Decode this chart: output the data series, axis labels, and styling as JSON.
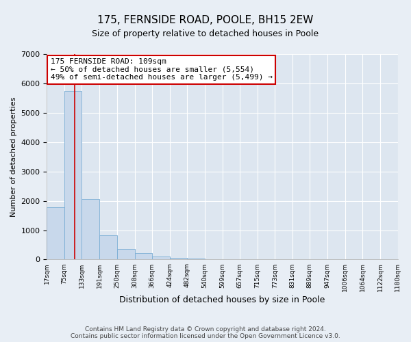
{
  "title": "175, FERNSIDE ROAD, POOLE, BH15 2EW",
  "subtitle": "Size of property relative to detached houses in Poole",
  "xlabel": "Distribution of detached houses by size in Poole",
  "ylabel": "Number of detached properties",
  "bar_values": [
    1780,
    5750,
    2060,
    820,
    370,
    220,
    100,
    55,
    30,
    10,
    5
  ],
  "bin_edges": [
    17,
    75,
    133,
    191,
    250,
    308,
    366,
    424,
    482,
    540,
    599,
    657,
    715,
    773,
    831,
    889,
    947,
    1006,
    1064,
    1122,
    1180
  ],
  "tick_labels": [
    "17sqm",
    "75sqm",
    "133sqm",
    "191sqm",
    "250sqm",
    "308sqm",
    "366sqm",
    "424sqm",
    "482sqm",
    "540sqm",
    "599sqm",
    "657sqm",
    "715sqm",
    "773sqm",
    "831sqm",
    "889sqm",
    "947sqm",
    "1006sqm",
    "1064sqm",
    "1122sqm",
    "1180sqm"
  ],
  "bar_color": "#c8d8eb",
  "bar_edge_color": "#7aadd4",
  "vline_x": 109,
  "vline_color": "#cc0000",
  "ylim": [
    0,
    7000
  ],
  "yticks": [
    0,
    1000,
    2000,
    3000,
    4000,
    5000,
    6000,
    7000
  ],
  "annotation_text": "175 FERNSIDE ROAD: 109sqm\n← 50% of detached houses are smaller (5,554)\n49% of semi-detached houses are larger (5,499) →",
  "annotation_box_facecolor": "#ffffff",
  "annotation_box_edgecolor": "#cc0000",
  "footer_line1": "Contains HM Land Registry data © Crown copyright and database right 2024.",
  "footer_line2": "Contains public sector information licensed under the Open Government Licence v3.0.",
  "figure_facecolor": "#e8eef5",
  "axes_facecolor": "#dde6f0",
  "grid_color": "#ffffff",
  "title_fontsize": 11,
  "subtitle_fontsize": 9
}
